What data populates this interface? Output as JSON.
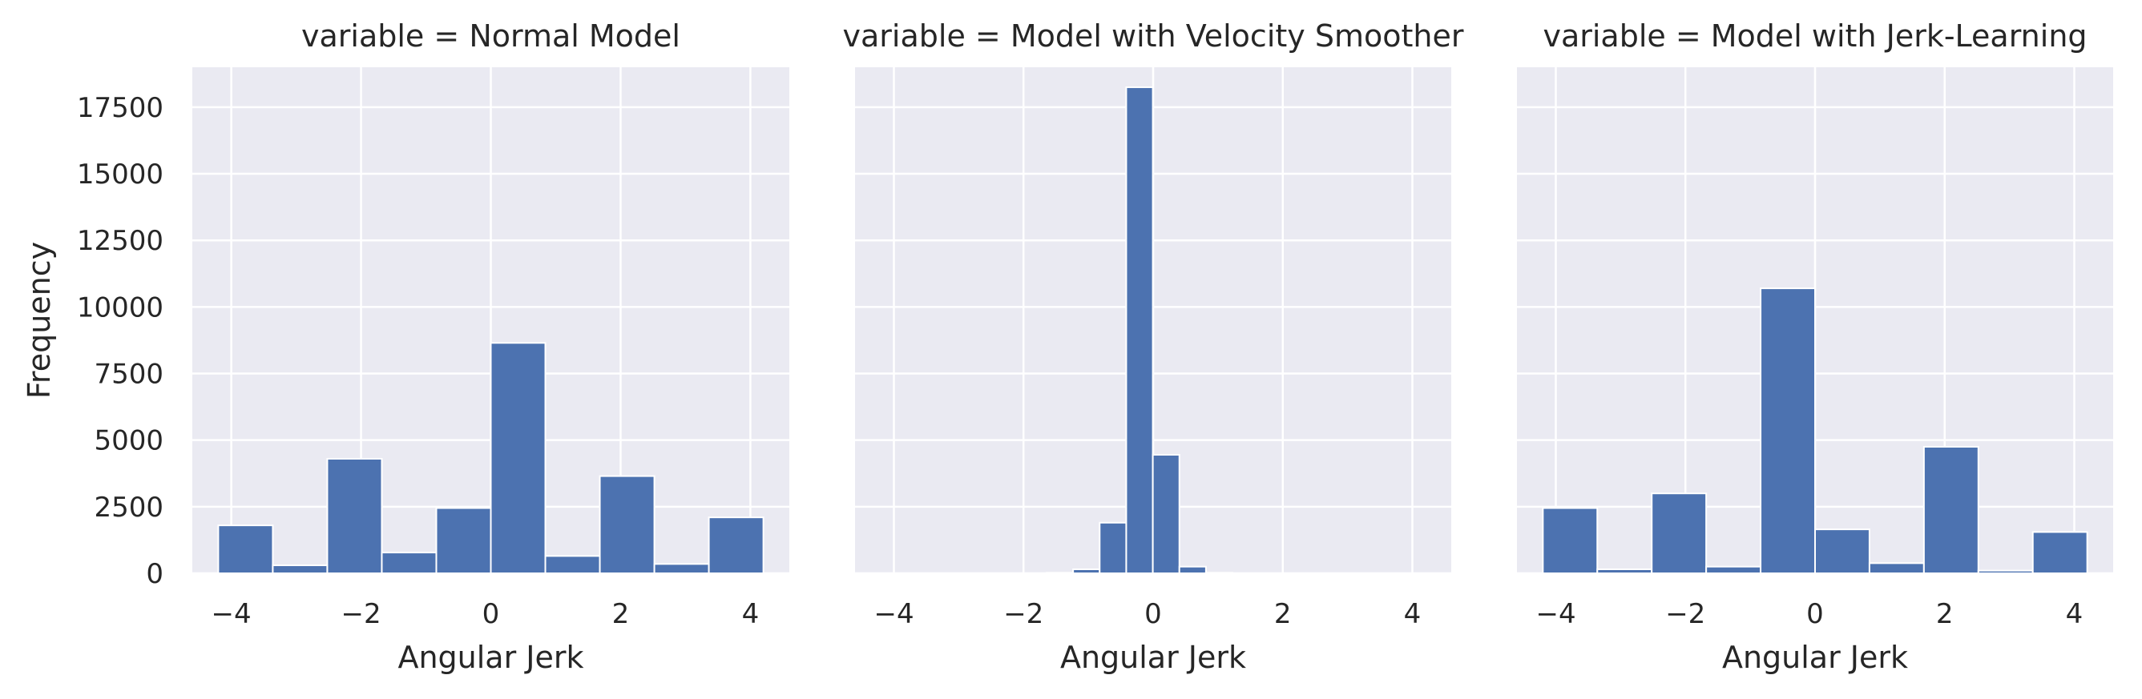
{
  "chart_data": [
    {
      "type": "bar",
      "title": "variable = Normal Model",
      "xlabel": "Angular Jerk",
      "ylabel": "Frequency",
      "bin_width": 0.84,
      "bins_center": [
        -3.78,
        -2.94,
        -2.1,
        -1.26,
        -0.42,
        0.42,
        1.26,
        2.1,
        2.94,
        3.78
      ],
      "values": [
        1800,
        300,
        4300,
        780,
        2450,
        8650,
        650,
        3650,
        350,
        2100
      ],
      "xlim": [
        -4.6,
        4.6
      ],
      "ylim": [
        0,
        19000
      ],
      "xticks": [
        -4,
        -2,
        0,
        2,
        4
      ],
      "xtick_labels": [
        "−4",
        "−2",
        "0",
        "2",
        "4"
      ],
      "yticks": [
        0,
        2500,
        5000,
        7500,
        10000,
        12500,
        15000,
        17500
      ],
      "ytick_labels": [
        "0",
        "2500",
        "5000",
        "7500",
        "10000",
        "12500",
        "15000",
        "17500"
      ],
      "grid": true,
      "bar_color": "#4c72b0",
      "background_color": "#eaeaf2"
    },
    {
      "type": "bar",
      "title": "variable = Model with Velocity Smoother",
      "xlabel": "Angular Jerk",
      "ylabel": "",
      "bin_width": 0.41,
      "bins_center": [
        -1.44,
        -1.03,
        -0.62,
        -0.21,
        0.2,
        0.61,
        1.02
      ],
      "values": [
        20,
        150,
        1900,
        18250,
        4450,
        250,
        20
      ],
      "xlim": [
        -4.6,
        4.6
      ],
      "ylim": [
        0,
        19000
      ],
      "xticks": [
        -4,
        -2,
        0,
        2,
        4
      ],
      "xtick_labels": [
        "−4",
        "−2",
        "0",
        "2",
        "4"
      ],
      "yticks": [
        0,
        2500,
        5000,
        7500,
        10000,
        12500,
        15000,
        17500
      ],
      "grid": true,
      "bar_color": "#4c72b0",
      "background_color": "#eaeaf2"
    },
    {
      "type": "bar",
      "title": "variable = Model with Jerk-Learning",
      "xlabel": "Angular Jerk",
      "ylabel": "",
      "bin_width": 0.84,
      "bins_center": [
        -3.78,
        -2.94,
        -2.1,
        -1.26,
        -0.42,
        0.42,
        1.26,
        2.1,
        2.94,
        3.78
      ],
      "values": [
        2450,
        150,
        3000,
        250,
        10700,
        1650,
        380,
        4750,
        100,
        1550
      ],
      "xlim": [
        -4.6,
        4.6
      ],
      "ylim": [
        0,
        19000
      ],
      "xticks": [
        -4,
        -2,
        0,
        2,
        4
      ],
      "xtick_labels": [
        "−4",
        "−2",
        "0",
        "2",
        "4"
      ],
      "yticks": [
        0,
        2500,
        5000,
        7500,
        10000,
        12500,
        15000,
        17500
      ],
      "grid": true,
      "bar_color": "#4c72b0",
      "background_color": "#eaeaf2"
    }
  ]
}
